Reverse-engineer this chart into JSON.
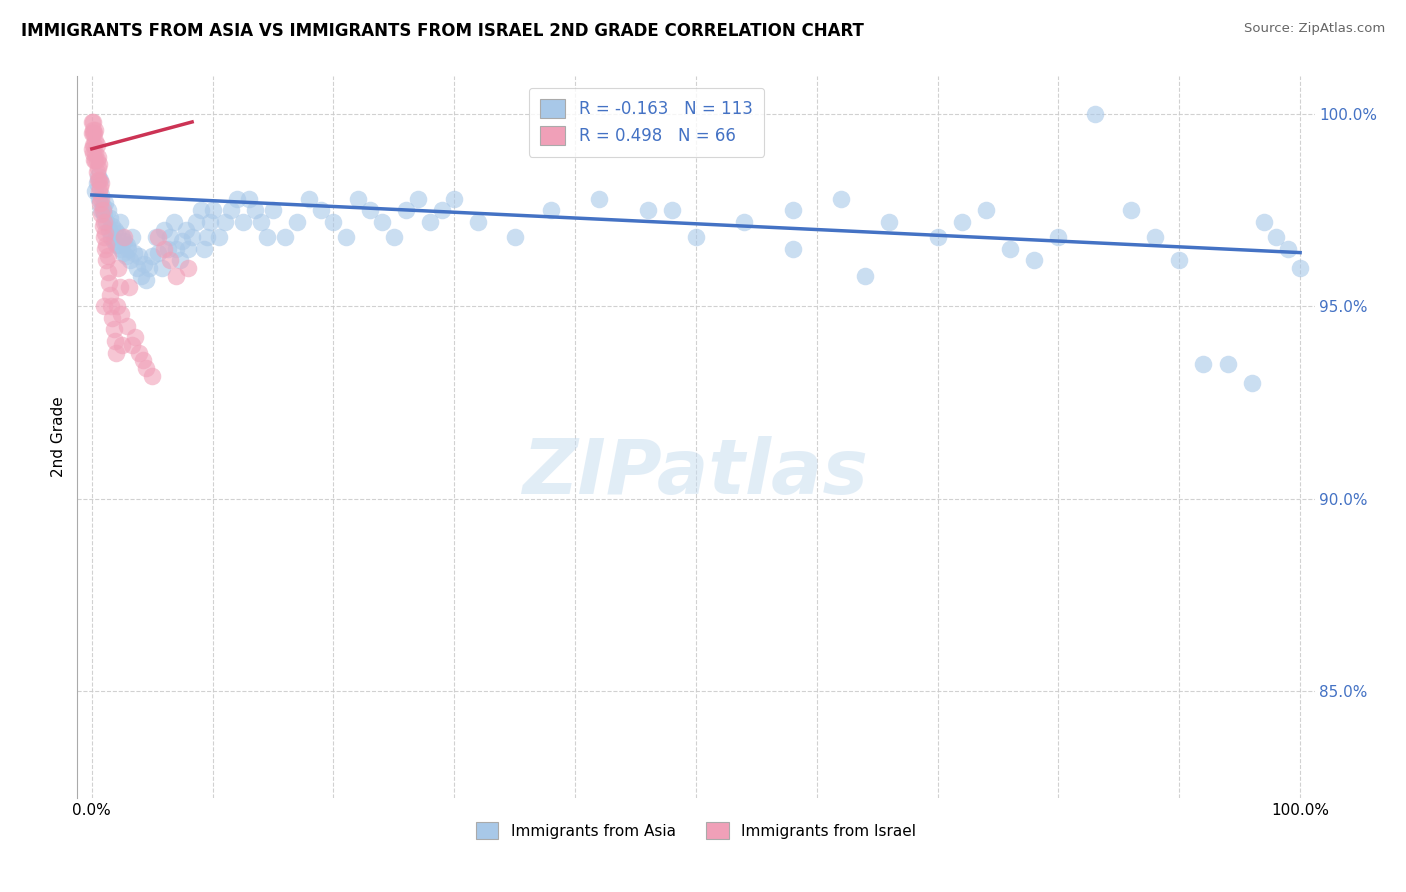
{
  "title": "IMMIGRANTS FROM ASIA VS IMMIGRANTS FROM ISRAEL 2ND GRADE CORRELATION CHART",
  "source": "Source: ZipAtlas.com",
  "ylabel": "2nd Grade",
  "legend_blue_r": "R = -0.163",
  "legend_blue_n": "N = 113",
  "legend_pink_r": "R = 0.498",
  "legend_pink_n": "N = 66",
  "legend_blue_label": "Immigrants from Asia",
  "legend_pink_label": "Immigrants from Israel",
  "blue_color": "#a8c8e8",
  "pink_color": "#f0a0b8",
  "trendline_blue_color": "#4472c4",
  "trendline_pink_color": "#cc3355",
  "watermark": "ZIPatlas",
  "r_n_color": "#4472c4",
  "ytick_color": "#4472c4",
  "yticklabels": [
    "85.0%",
    "90.0%",
    "95.0%",
    "100.0%"
  ],
  "yticks": [
    0.85,
    0.9,
    0.95,
    1.0
  ],
  "ylim": [
    0.822,
    1.01
  ],
  "xlim": [
    -0.012,
    1.012
  ],
  "blue_scatter_x": [
    0.003,
    0.004,
    0.005,
    0.006,
    0.007,
    0.008,
    0.008,
    0.009,
    0.01,
    0.011,
    0.012,
    0.013,
    0.014,
    0.015,
    0.016,
    0.017,
    0.018,
    0.019,
    0.02,
    0.021,
    0.022,
    0.023,
    0.024,
    0.025,
    0.026,
    0.027,
    0.028,
    0.029,
    0.03,
    0.032,
    0.033,
    0.035,
    0.037,
    0.039,
    0.041,
    0.043,
    0.045,
    0.047,
    0.05,
    0.053,
    0.055,
    0.058,
    0.06,
    0.063,
    0.065,
    0.068,
    0.07,
    0.073,
    0.075,
    0.078,
    0.08,
    0.083,
    0.086,
    0.09,
    0.093,
    0.095,
    0.098,
    0.1,
    0.105,
    0.11,
    0.115,
    0.12,
    0.125,
    0.13,
    0.135,
    0.14,
    0.145,
    0.15,
    0.16,
    0.17,
    0.18,
    0.19,
    0.2,
    0.21,
    0.22,
    0.23,
    0.24,
    0.25,
    0.26,
    0.27,
    0.28,
    0.29,
    0.3,
    0.32,
    0.35,
    0.38,
    0.42,
    0.46,
    0.5,
    0.54,
    0.58,
    0.62,
    0.66,
    0.7,
    0.74,
    0.76,
    0.78,
    0.8,
    0.83,
    0.86,
    0.88,
    0.9,
    0.92,
    0.94,
    0.96,
    0.97,
    0.98,
    0.99,
    1.0,
    0.64,
    0.58,
    0.72,
    0.48
  ],
  "blue_scatter_y": [
    0.98,
    0.982,
    0.984,
    0.978,
    0.983,
    0.975,
    0.979,
    0.976,
    0.974,
    0.977,
    0.972,
    0.975,
    0.97,
    0.973,
    0.968,
    0.971,
    0.967,
    0.97,
    0.966,
    0.969,
    0.966,
    0.972,
    0.965,
    0.968,
    0.964,
    0.967,
    0.963,
    0.966,
    0.965,
    0.962,
    0.968,
    0.964,
    0.96,
    0.963,
    0.958,
    0.961,
    0.957,
    0.96,
    0.963,
    0.968,
    0.964,
    0.96,
    0.97,
    0.965,
    0.968,
    0.972,
    0.965,
    0.962,
    0.967,
    0.97,
    0.965,
    0.968,
    0.972,
    0.975,
    0.965,
    0.968,
    0.972,
    0.975,
    0.968,
    0.972,
    0.975,
    0.978,
    0.972,
    0.978,
    0.975,
    0.972,
    0.968,
    0.975,
    0.968,
    0.972,
    0.978,
    0.975,
    0.972,
    0.968,
    0.978,
    0.975,
    0.972,
    0.968,
    0.975,
    0.978,
    0.972,
    0.975,
    0.978,
    0.972,
    0.968,
    0.975,
    0.978,
    0.975,
    0.968,
    0.972,
    0.975,
    0.978,
    0.972,
    0.968,
    0.975,
    0.965,
    0.962,
    0.968,
    1.0,
    0.975,
    0.968,
    0.962,
    0.935,
    0.935,
    0.93,
    0.972,
    0.968,
    0.965,
    0.96,
    0.958,
    0.965,
    0.972,
    0.975
  ],
  "pink_scatter_x": [
    0.0,
    0.0,
    0.0,
    0.001,
    0.001,
    0.001,
    0.001,
    0.001,
    0.002,
    0.002,
    0.002,
    0.003,
    0.003,
    0.003,
    0.003,
    0.004,
    0.004,
    0.004,
    0.005,
    0.005,
    0.005,
    0.006,
    0.006,
    0.006,
    0.007,
    0.007,
    0.008,
    0.008,
    0.008,
    0.009,
    0.009,
    0.01,
    0.01,
    0.011,
    0.011,
    0.012,
    0.012,
    0.013,
    0.013,
    0.014,
    0.015,
    0.016,
    0.017,
    0.018,
    0.019,
    0.02,
    0.021,
    0.022,
    0.023,
    0.024,
    0.025,
    0.027,
    0.029,
    0.031,
    0.033,
    0.036,
    0.039,
    0.042,
    0.045,
    0.05,
    0.055,
    0.06,
    0.065,
    0.07,
    0.08,
    0.01
  ],
  "pink_scatter_y": [
    0.991,
    0.995,
    0.998,
    0.992,
    0.995,
    0.998,
    0.996,
    0.99,
    0.992,
    0.995,
    0.988,
    0.99,
    0.993,
    0.996,
    0.988,
    0.985,
    0.988,
    0.992,
    0.983,
    0.986,
    0.989,
    0.98,
    0.983,
    0.987,
    0.977,
    0.981,
    0.974,
    0.978,
    0.982,
    0.971,
    0.975,
    0.968,
    0.972,
    0.965,
    0.969,
    0.962,
    0.966,
    0.959,
    0.963,
    0.956,
    0.953,
    0.95,
    0.947,
    0.944,
    0.941,
    0.938,
    0.95,
    0.96,
    0.955,
    0.948,
    0.94,
    0.968,
    0.945,
    0.955,
    0.94,
    0.942,
    0.938,
    0.936,
    0.934,
    0.932,
    0.968,
    0.965,
    0.962,
    0.958,
    0.96,
    0.95
  ],
  "blue_trend_x": [
    0.0,
    1.0
  ],
  "blue_trend_y_start": 0.979,
  "blue_trend_y_end": 0.964,
  "pink_trend_x": [
    0.0,
    0.083
  ],
  "pink_trend_y_start": 0.991,
  "pink_trend_y_end": 0.998
}
